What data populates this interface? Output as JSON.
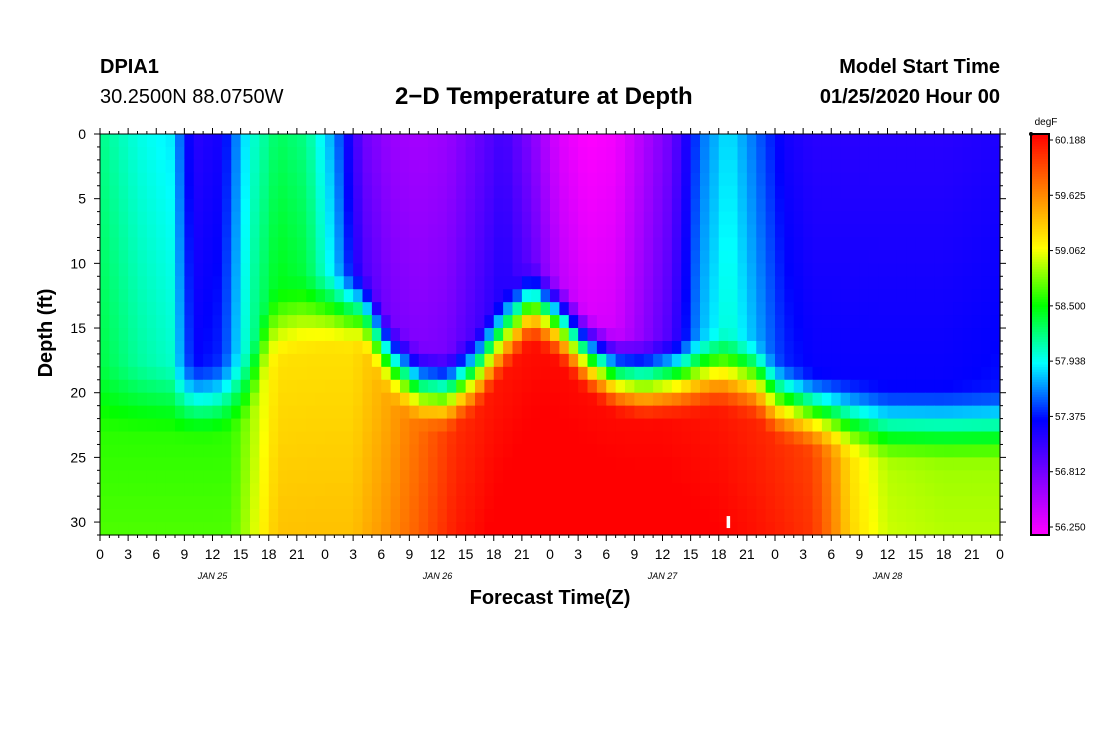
{
  "header": {
    "station_id": "DPIA1",
    "station_coords": "30.2500N 88.0750W",
    "title": "2−D Temperature at Depth",
    "start_label": "Model Start Time",
    "start_value": "01/25/2020 Hour 00"
  },
  "colors": {
    "scale": [
      "#ff00ff",
      "#8000ff",
      "#0000ff",
      "#00ffff",
      "#00ff00",
      "#ffff00",
      "#ff8000",
      "#ff0000"
    ]
  },
  "chart_data": {
    "type": "heatmap",
    "title": "2−D Temperature at Depth",
    "xlabel": "Forecast Time(Z)",
    "ylabel": "Depth (ft)",
    "unit": "degF",
    "x_hours_range": [
      0,
      96
    ],
    "y_depth_range": [
      0,
      31
    ],
    "x_tick_labels": [
      "0",
      "3",
      "6",
      "9",
      "12",
      "15",
      "18",
      "21",
      "0",
      "3",
      "6",
      "9",
      "12",
      "15",
      "18",
      "21",
      "0",
      "3",
      "6",
      "9",
      "12",
      "15",
      "18",
      "21",
      "0",
      "3",
      "6",
      "9",
      "12",
      "15",
      "18",
      "21",
      "0"
    ],
    "y_tick_labels": [
      "0",
      "5",
      "10",
      "15",
      "20",
      "25",
      "30"
    ],
    "y_tick_values": [
      0,
      5,
      10,
      15,
      20,
      25,
      30
    ],
    "day_labels": [
      {
        "text": "JAN 25",
        "hour": 12
      },
      {
        "text": "JAN 26",
        "hour": 36
      },
      {
        "text": "JAN 27",
        "hour": 60
      },
      {
        "text": "JAN 28",
        "hour": 84
      }
    ],
    "colorbar_labels": [
      "60.188",
      "59.625",
      "59.062",
      "58.500",
      "57.938",
      "57.375",
      "56.812",
      "56.250"
    ],
    "colorbar_values": [
      60.188,
      59.625,
      59.062,
      58.5,
      57.938,
      57.375,
      56.812,
      56.25
    ],
    "vmin": 56.25,
    "vmax": 60.188,
    "surface_profile": [
      [
        0,
        58.2
      ],
      [
        4,
        58.0
      ],
      [
        7.5,
        57.9
      ],
      [
        10,
        57.2
      ],
      [
        13,
        57.3
      ],
      [
        16,
        58.0
      ],
      [
        19,
        58.3
      ],
      [
        22,
        58.2
      ],
      [
        25,
        57.7
      ],
      [
        28,
        56.9
      ],
      [
        31,
        56.7
      ],
      [
        34,
        56.65
      ],
      [
        37,
        56.7
      ],
      [
        40,
        56.9
      ],
      [
        43,
        57.1
      ],
      [
        46,
        56.8
      ],
      [
        49,
        56.4
      ],
      [
        52,
        56.25
      ],
      [
        55,
        56.3
      ],
      [
        58,
        56.6
      ],
      [
        61,
        56.9
      ],
      [
        64,
        57.6
      ],
      [
        67,
        57.9
      ],
      [
        70,
        57.6
      ],
      [
        73,
        57.3
      ],
      [
        76,
        57.2
      ],
      [
        80,
        57.2
      ],
      [
        85,
        57.2
      ],
      [
        90,
        57.2
      ],
      [
        96,
        57.25
      ]
    ],
    "mixed_layer_bottom_ft": [
      [
        0,
        23
      ],
      [
        6,
        23
      ],
      [
        12,
        23
      ],
      [
        16,
        22
      ],
      [
        18,
        17.5
      ],
      [
        21,
        16.5
      ],
      [
        24,
        16
      ],
      [
        28,
        16
      ],
      [
        31,
        20
      ],
      [
        34,
        22
      ],
      [
        37,
        22.5
      ],
      [
        40,
        21
      ],
      [
        43,
        18
      ],
      [
        46,
        15.5
      ],
      [
        49,
        17
      ],
      [
        52,
        19.5
      ],
      [
        55,
        21
      ],
      [
        58,
        21.5
      ],
      [
        62,
        21.3
      ],
      [
        66,
        20.8
      ],
      [
        70,
        21.5
      ],
      [
        72,
        23
      ],
      [
        76,
        24
      ],
      [
        80,
        24.5
      ],
      [
        84,
        25
      ],
      [
        90,
        25
      ],
      [
        96,
        25
      ]
    ],
    "deep_profile": [
      [
        0,
        58.6
      ],
      [
        14,
        58.6
      ],
      [
        16.5,
        58.9
      ],
      [
        19,
        59.2
      ],
      [
        27,
        59.2
      ],
      [
        30,
        59.4
      ],
      [
        34,
        59.7
      ],
      [
        38,
        60.0
      ],
      [
        42,
        60.1
      ],
      [
        48,
        60.15
      ],
      [
        54,
        60.15
      ],
      [
        60,
        60.15
      ],
      [
        66,
        60.1
      ],
      [
        72,
        60.0
      ],
      [
        76,
        59.9
      ],
      [
        78,
        59.6
      ],
      [
        80,
        59.2
      ],
      [
        84,
        58.9
      ],
      [
        90,
        58.85
      ],
      [
        96,
        58.85
      ]
    ],
    "marker": {
      "hour": 67,
      "depth_ft": 30
    }
  }
}
